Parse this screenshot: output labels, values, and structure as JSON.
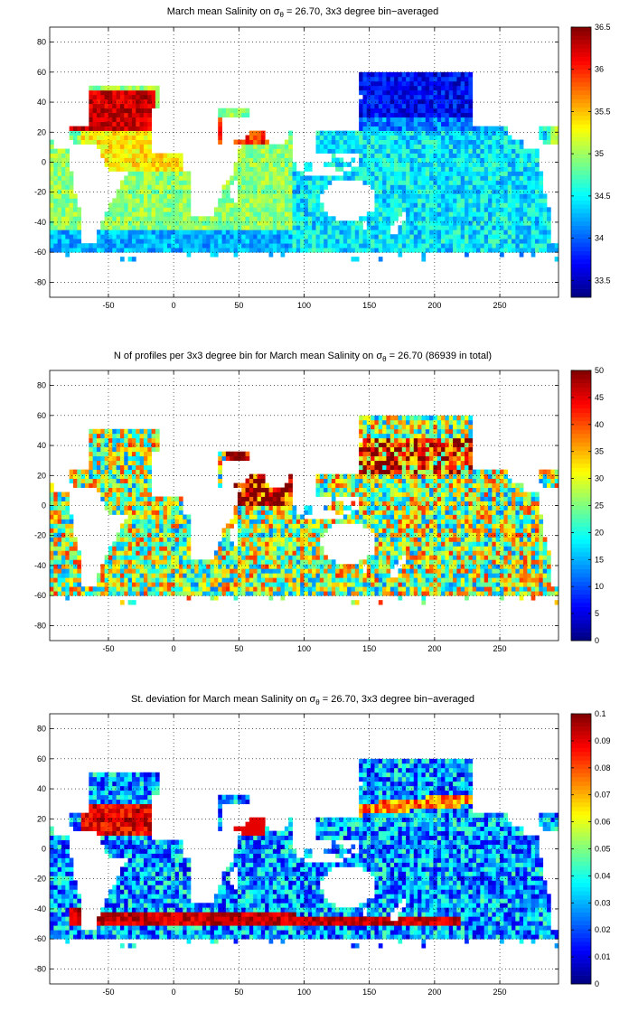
{
  "chart_data": [
    {
      "type": "heatmap",
      "title_prefix": "March mean Salinity on ",
      "title_sigma": "σ",
      "title_sub": "θ",
      "title_suffix": " = 26.70, 3x3 degree bin−averaged",
      "xlim": [
        -95,
        295
      ],
      "ylim": [
        -90,
        90
      ],
      "xticks": [
        -50,
        0,
        50,
        100,
        150,
        200,
        250
      ],
      "yticks": [
        -80,
        -60,
        -40,
        -20,
        0,
        20,
        40,
        60,
        80
      ],
      "colorbar_range": [
        33.3,
        36.5
      ],
      "colorbar_ticks": [
        "33.5",
        "34",
        "34.5",
        "35",
        "35.5",
        "36",
        "36.5"
      ],
      "colorbar_tick_values": [
        33.5,
        34,
        34.5,
        35,
        35.5,
        36,
        36.5
      ],
      "grid": true,
      "colormap": "jet",
      "field": "salinity"
    },
    {
      "type": "heatmap",
      "title_prefix": "N of profiles per 3x3 degree bin for March mean Salinity on ",
      "title_sigma": "σ",
      "title_sub": "θ",
      "title_suffix": " = 26.70 (86939 in total)",
      "xlim": [
        -95,
        295
      ],
      "ylim": [
        -90,
        90
      ],
      "xticks": [
        -50,
        0,
        50,
        100,
        150,
        200,
        250
      ],
      "yticks": [
        -80,
        -60,
        -40,
        -20,
        0,
        20,
        40,
        60,
        80
      ],
      "colorbar_range": [
        0,
        50
      ],
      "colorbar_ticks": [
        "0",
        "5",
        "10",
        "15",
        "20",
        "25",
        "30",
        "35",
        "40",
        "45",
        "50"
      ],
      "colorbar_tick_values": [
        0,
        5,
        10,
        15,
        20,
        25,
        30,
        35,
        40,
        45,
        50
      ],
      "grid": true,
      "colormap": "jet",
      "field": "count"
    },
    {
      "type": "heatmap",
      "title_prefix": "St. deviation for March mean Salinity on ",
      "title_sigma": "σ",
      "title_sub": "θ",
      "title_suffix": " = 26.70, 3x3 degree bin−averaged",
      "xlim": [
        -95,
        295
      ],
      "ylim": [
        -90,
        90
      ],
      "xticks": [
        -50,
        0,
        50,
        100,
        150,
        200,
        250
      ],
      "yticks": [
        -80,
        -60,
        -40,
        -20,
        0,
        20,
        40,
        60,
        80
      ],
      "colorbar_range": [
        0,
        0.1
      ],
      "colorbar_ticks": [
        "0",
        "0.01",
        "0.02",
        "0.03",
        "0.04",
        "0.05",
        "0.06",
        "0.07",
        "0.08",
        "0.09",
        "0.1"
      ],
      "colorbar_tick_values": [
        0,
        0.01,
        0.02,
        0.03,
        0.04,
        0.05,
        0.06,
        0.07,
        0.08,
        0.09,
        0.1
      ],
      "grid": true,
      "colormap": "jet",
      "field": "stdev"
    }
  ]
}
